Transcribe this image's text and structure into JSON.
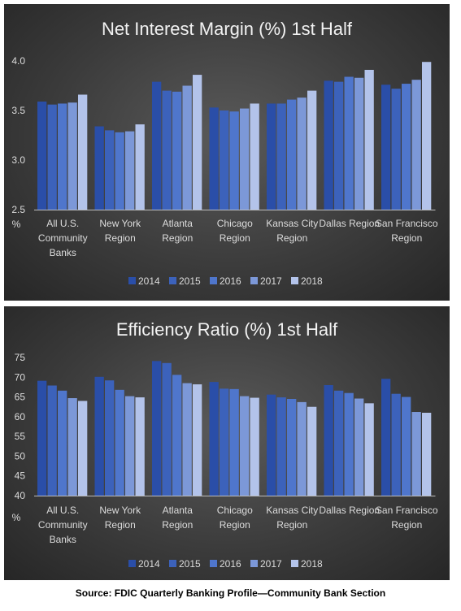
{
  "chart_data": [
    {
      "type": "bar",
      "title": "Net Interest Margin (%) 1st Half",
      "ylabel": "%",
      "ylim": [
        2.5,
        4.0
      ],
      "yticks": [
        "2.5",
        "3.0",
        "3.5",
        "4.0"
      ],
      "grid": false,
      "legend": "bottom",
      "categories": [
        [
          "All U.S.",
          "Community",
          "Banks"
        ],
        [
          "New York",
          "Region"
        ],
        [
          "Atlanta",
          "Region"
        ],
        [
          "Chicago",
          "Region"
        ],
        [
          "Kansas City",
          "Region"
        ],
        [
          "Dallas Region"
        ],
        [
          "San Francisco",
          "Region"
        ]
      ],
      "series": [
        {
          "name": "2014",
          "values": [
            3.59,
            3.34,
            3.79,
            3.53,
            3.57,
            3.8,
            3.76
          ]
        },
        {
          "name": "2015",
          "values": [
            3.56,
            3.3,
            3.7,
            3.5,
            3.57,
            3.79,
            3.72
          ]
        },
        {
          "name": "2016",
          "values": [
            3.57,
            3.28,
            3.69,
            3.49,
            3.61,
            3.84,
            3.77
          ]
        },
        {
          "name": "2017",
          "values": [
            3.58,
            3.29,
            3.75,
            3.52,
            3.63,
            3.83,
            3.81
          ]
        },
        {
          "name": "2018",
          "values": [
            3.66,
            3.36,
            3.86,
            3.57,
            3.7,
            3.91,
            3.99
          ]
        }
      ]
    },
    {
      "type": "bar",
      "title": "Efficiency Ratio (%) 1st Half",
      "ylabel": "%",
      "ylim": [
        40,
        75
      ],
      "yticks": [
        "40",
        "45",
        "50",
        "55",
        "60",
        "65",
        "70",
        "75"
      ],
      "grid": false,
      "legend": "bottom",
      "categories": [
        [
          "All U.S.",
          "Community",
          "Banks"
        ],
        [
          "New York",
          "Region"
        ],
        [
          "Atlanta",
          "Region"
        ],
        [
          "Chicago",
          "Region"
        ],
        [
          "Kansas City",
          "Region"
        ],
        [
          "Dallas Region"
        ],
        [
          "San Francisco",
          "Region"
        ]
      ],
      "series": [
        {
          "name": "2014",
          "values": [
            69.1,
            70.1,
            74.1,
            68.8,
            65.6,
            68.0,
            69.6
          ]
        },
        {
          "name": "2015",
          "values": [
            67.9,
            69.2,
            73.6,
            67.1,
            64.9,
            66.6,
            65.8
          ]
        },
        {
          "name": "2016",
          "values": [
            66.6,
            66.8,
            70.6,
            67.0,
            64.5,
            66.0,
            65.0
          ]
        },
        {
          "name": "2017",
          "values": [
            64.7,
            65.2,
            68.5,
            65.2,
            63.7,
            64.6,
            61.2
          ]
        },
        {
          "name": "2018",
          "values": [
            64.0,
            64.9,
            68.2,
            64.8,
            62.5,
            63.4,
            61.0
          ]
        }
      ]
    }
  ],
  "colors": {
    "series": [
      "#2a4ea8",
      "#3c62bb",
      "#4f76cc",
      "#7c98d8",
      "#b3c3ea"
    ],
    "text": "#dcdcdc",
    "title": "#f2f2f2",
    "axis": "#bdbdbd"
  },
  "footer": {
    "source": "Source: FDIC Quarterly Banking Profile—Community Bank Section"
  }
}
